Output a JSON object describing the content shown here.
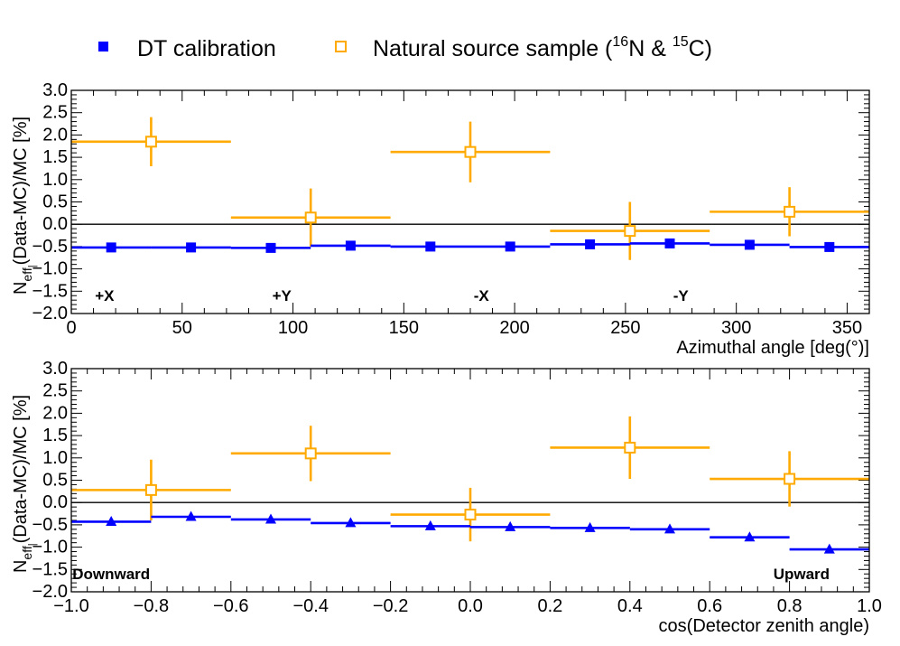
{
  "legend": {
    "dt_label": "DT calibration",
    "ns_label_prefix": "Natural source sample (",
    "ns_sup1": "16",
    "ns_mid": "N & ",
    "ns_sup2": "15",
    "ns_suffix": "C)"
  },
  "colors": {
    "dt": "#0000ff",
    "ns": "#ffaa00",
    "axis": "#000000",
    "zero_line": "#000000"
  },
  "chart_data": [
    {
      "type": "scatter",
      "xlabel": "Azimuthal angle [deg(°)]",
      "ylabel_N": "N",
      "ylabel_sub": "eff",
      "ylabel_subsub": "|",
      "ylabel_rest": "(Data-MC)/MC [%]",
      "xlim": [
        0,
        360
      ],
      "ylim": [
        -2.0,
        3.0
      ],
      "xticks": [
        0,
        50,
        100,
        150,
        200,
        250,
        300,
        350
      ],
      "xtick_labels": [
        "0",
        "50",
        "100",
        "150",
        "200",
        "250",
        "300",
        "350"
      ],
      "yticks": [
        -2.0,
        -1.5,
        -1.0,
        -0.5,
        0.0,
        0.5,
        1.0,
        1.5,
        2.0,
        2.5,
        3.0
      ],
      "ytick_labels": [
        "−2.0",
        "−1.5",
        "−1.0",
        "−0.5",
        "0.0",
        "0.5",
        "1.0",
        "1.5",
        "2.0",
        "2.5",
        "3.0"
      ],
      "zero_line": true,
      "annotations": [
        {
          "text": "+X",
          "x": 15,
          "y": -1.6
        },
        {
          "text": "+Y",
          "x": 95,
          "y": -1.6
        },
        {
          "text": "-X",
          "x": 185,
          "y": -1.6
        },
        {
          "text": "-Y",
          "x": 275,
          "y": -1.6
        }
      ],
      "series": [
        {
          "name": "DT calibration",
          "marker": "square",
          "x": [
            18,
            54,
            90,
            126,
            162,
            198,
            234,
            270,
            306,
            342
          ],
          "xerr": 18,
          "y": [
            -0.52,
            -0.52,
            -0.53,
            -0.48,
            -0.5,
            -0.5,
            -0.45,
            -0.43,
            -0.46,
            -0.51
          ],
          "yerr": [
            0.03,
            0.03,
            0.03,
            0.03,
            0.03,
            0.03,
            0.03,
            0.03,
            0.03,
            0.03
          ]
        },
        {
          "name": "Natural source sample",
          "marker": "open-square",
          "x": [
            36,
            108,
            180,
            252,
            324
          ],
          "xerr": 36,
          "y": [
            1.85,
            0.15,
            1.62,
            -0.15,
            0.28
          ],
          "yerr": [
            0.55,
            0.65,
            0.68,
            0.65,
            0.55
          ]
        }
      ]
    },
    {
      "type": "scatter",
      "xlabel": "cos(Detector zenith angle)",
      "ylabel_N": "N",
      "ylabel_sub": "eff",
      "ylabel_subsub": "|",
      "ylabel_rest": "(Data-MC)/MC [%]",
      "xlim": [
        -1.0,
        1.0
      ],
      "ylim": [
        -2.0,
        3.0
      ],
      "xticks": [
        -1.0,
        -0.8,
        -0.6,
        -0.4,
        -0.2,
        0.0,
        0.2,
        0.4,
        0.6,
        0.8,
        1.0
      ],
      "xtick_labels": [
        "−1.0",
        "−0.8",
        "−0.6",
        "−0.4",
        "−0.2",
        "0.0",
        "0.2",
        "0.4",
        "0.6",
        "0.8",
        "1.0"
      ],
      "yticks": [
        -2.0,
        -1.5,
        -1.0,
        -0.5,
        0.0,
        0.5,
        1.0,
        1.5,
        2.0,
        2.5,
        3.0
      ],
      "ytick_labels": [
        "−2.0",
        "−1.5",
        "−1.0",
        "−0.5",
        "0.0",
        "0.5",
        "1.0",
        "1.5",
        "2.0",
        "2.5",
        "3.0"
      ],
      "zero_line": true,
      "annotations": [
        {
          "text": "Downward",
          "x": -0.9,
          "y": -1.6
        },
        {
          "text": "Upward",
          "x": 0.83,
          "y": -1.6
        }
      ],
      "series": [
        {
          "name": "DT calibration",
          "marker": "triangle",
          "x": [
            -0.9,
            -0.7,
            -0.5,
            -0.3,
            -0.1,
            0.1,
            0.3,
            0.5,
            0.7,
            0.9
          ],
          "xerr": 0.1,
          "y": [
            -0.43,
            -0.32,
            -0.38,
            -0.46,
            -0.53,
            -0.55,
            -0.57,
            -0.6,
            -0.78,
            -1.05
          ],
          "yerr": [
            0.03,
            0.03,
            0.03,
            0.03,
            0.03,
            0.03,
            0.03,
            0.03,
            0.03,
            0.03
          ]
        },
        {
          "name": "Natural source sample",
          "marker": "open-square",
          "x": [
            -0.8,
            -0.4,
            0.0,
            0.4,
            0.8
          ],
          "xerr": 0.2,
          "y": [
            0.28,
            1.1,
            -0.27,
            1.23,
            0.53
          ],
          "yerr": [
            0.68,
            0.62,
            0.6,
            0.7,
            0.62
          ]
        }
      ]
    }
  ]
}
